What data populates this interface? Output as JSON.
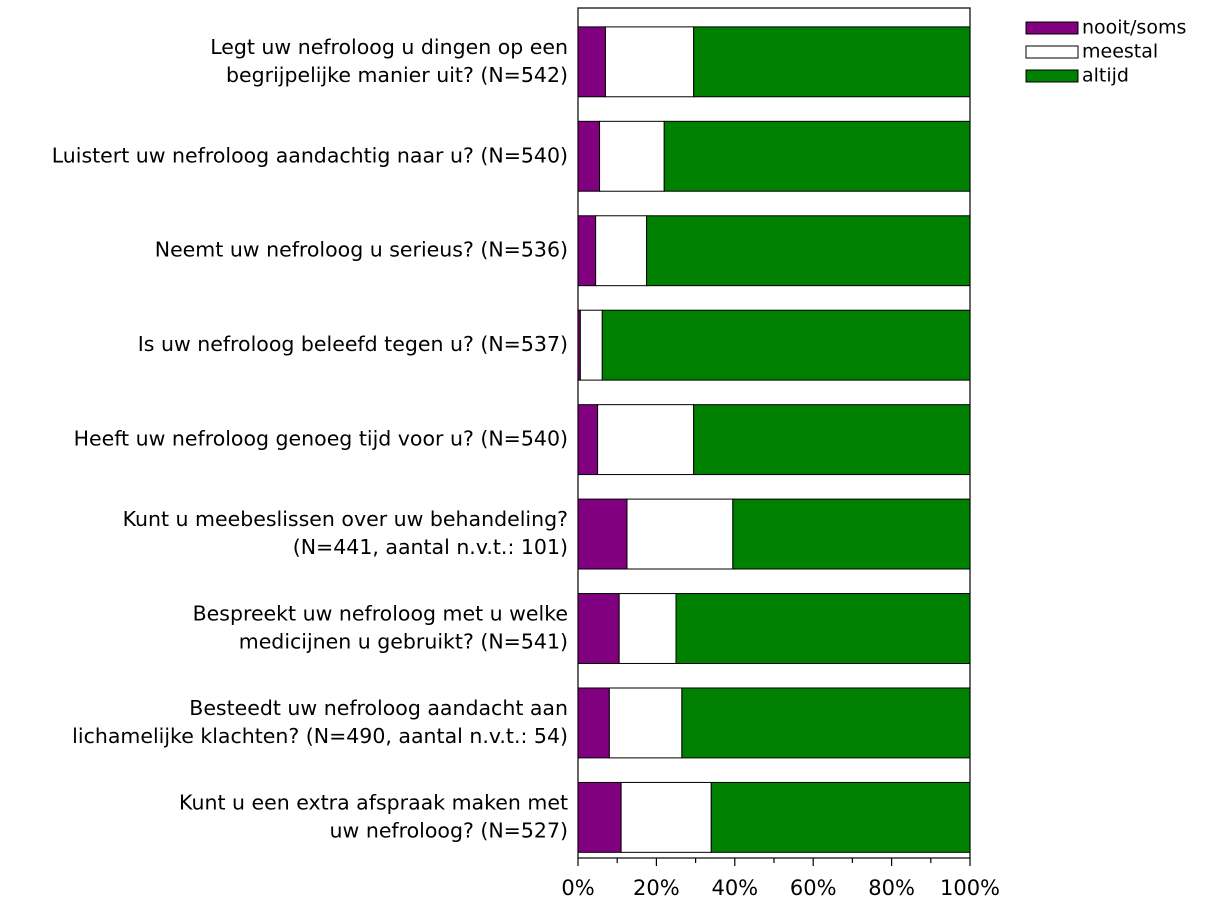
{
  "chart_data": {
    "type": "bar",
    "orientation": "horizontal",
    "stacked": "percent",
    "categories": [
      [
        "Legt uw nefroloog u dingen op een",
        "begrijpelijke manier uit? (N=542)"
      ],
      [
        "Luistert uw nefroloog aandachtig naar u? (N=540)"
      ],
      [
        "Neemt uw nefroloog u serieus? (N=536)"
      ],
      [
        "Is uw nefroloog beleefd tegen u? (N=537)"
      ],
      [
        "Heeft uw nefroloog genoeg tijd voor u? (N=540)"
      ],
      [
        "Kunt u meebeslissen over uw behandeling?",
        "(N=441, aantal n.v.t.: 101)"
      ],
      [
        "Bespreekt uw nefroloog met u welke",
        "medicijnen u gebruikt? (N=541)"
      ],
      [
        "Besteedt uw nefroloog aandacht aan",
        "lichamelijke klachten? (N=490, aantal n.v.t.: 54)"
      ],
      [
        "Kunt u een extra afspraak maken met",
        "uw nefroloog? (N=527)"
      ]
    ],
    "series": [
      {
        "name": "nooit/soms",
        "color": "#800080",
        "values": [
          7,
          5.5,
          4.5,
          0.6,
          5,
          12.5,
          10.5,
          8,
          11
        ]
      },
      {
        "name": "meestal",
        "color": "#ffffff",
        "values": [
          22.5,
          16.5,
          13,
          5.6,
          24.5,
          27,
          14.5,
          18.5,
          23
        ]
      },
      {
        "name": "altijd",
        "color": "#008000",
        "values": [
          70.5,
          78,
          82.5,
          93.8,
          70.5,
          60.5,
          75,
          73.5,
          66
        ]
      }
    ],
    "x_ticks": [
      "0%",
      "20%",
      "40%",
      "60%",
      "80%",
      "100%"
    ],
    "xlim": [
      0,
      100
    ],
    "grid": false,
    "legend_position": "top-right"
  }
}
